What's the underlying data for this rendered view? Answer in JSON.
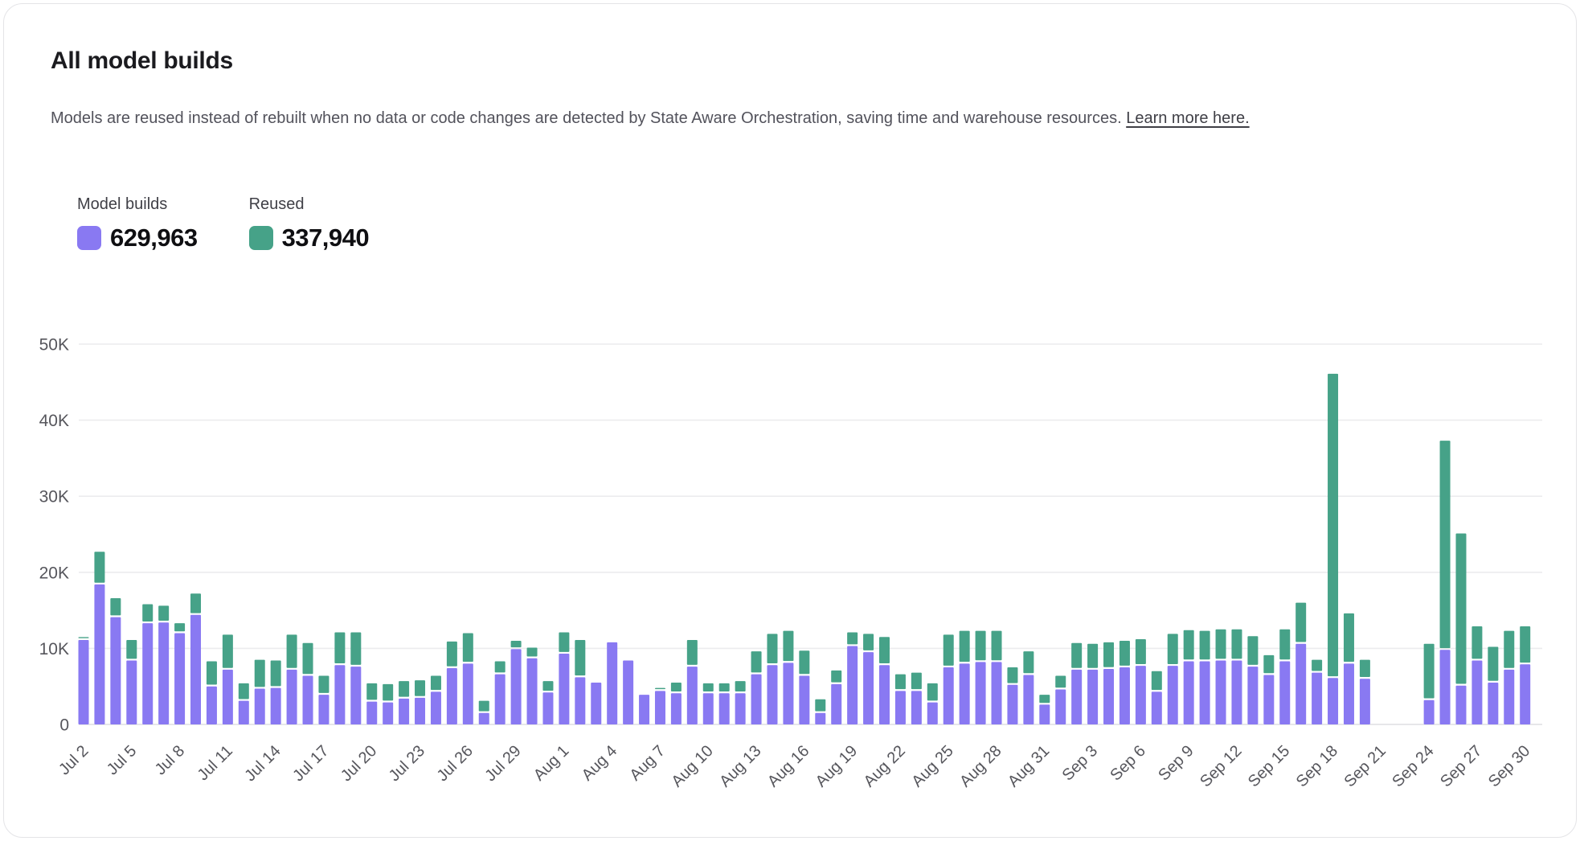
{
  "card": {
    "title": "All model builds",
    "subtitle": "Models are reused instead of rebuilt when no data or code changes are detected by State Aware Orchestration, saving time and warehouse resources.",
    "link_text": "Learn more here."
  },
  "legend": [
    {
      "label": "Model builds",
      "value": "629,963",
      "color": "#8979f2"
    },
    {
      "label": "Reused",
      "value": "337,940",
      "color": "#46a288"
    }
  ],
  "colors": {
    "model_builds": "#8979f2",
    "reused": "#46a288",
    "gridline": "#ececee",
    "baseline": "#e6e6e9",
    "axis_text": "#56565c",
    "card_border": "#e4e4e7"
  },
  "chart_data": {
    "type": "bar",
    "stacked": true,
    "title": "All model builds",
    "xlabel": "",
    "ylabel": "",
    "unit": "thousands",
    "ylim": [
      0,
      50
    ],
    "grid": true,
    "legend_position": "top-left",
    "yticks": [
      {
        "value": 0,
        "label": "0"
      },
      {
        "value": 10,
        "label": "10K"
      },
      {
        "value": 20,
        "label": "20K"
      },
      {
        "value": 30,
        "label": "30K"
      },
      {
        "value": 40,
        "label": "40K"
      },
      {
        "value": 50,
        "label": "50K"
      }
    ],
    "xtick_every": 3,
    "xticks": [
      "Jul 2",
      "Jul 5",
      "Jul 8",
      "Jul 11",
      "Jul 14",
      "Jul 17",
      "Jul 20",
      "Jul 23",
      "Jul 26",
      "Jul 29",
      "Aug 1",
      "Aug 4",
      "Aug 7",
      "Aug 10",
      "Aug 13",
      "Aug 16",
      "Aug 19",
      "Aug 22",
      "Aug 25",
      "Aug 28",
      "Aug 31",
      "Sep 3",
      "Sep 6",
      "Sep 9",
      "Sep 12",
      "Sep 15",
      "Sep 18",
      "Sep 21",
      "Sep 24",
      "Sep 27"
    ],
    "categories": [
      "Jul 2",
      "Jul 3",
      "Jul 4",
      "Jul 5",
      "Jul 6",
      "Jul 7",
      "Jul 8",
      "Jul 9",
      "Jul 10",
      "Jul 11",
      "Jul 12",
      "Jul 13",
      "Jul 14",
      "Jul 15",
      "Jul 16",
      "Jul 17",
      "Jul 18",
      "Jul 19",
      "Jul 20",
      "Jul 21",
      "Jul 22",
      "Jul 23",
      "Jul 24",
      "Jul 25",
      "Jul 26",
      "Jul 27",
      "Jul 28",
      "Jul 29",
      "Jul 30",
      "Jul 31",
      "Aug 1",
      "Aug 2",
      "Aug 3",
      "Aug 4",
      "Aug 5",
      "Aug 6",
      "Aug 7",
      "Aug 8",
      "Aug 9",
      "Aug 10",
      "Aug 11",
      "Aug 12",
      "Aug 13",
      "Aug 14",
      "Aug 15",
      "Aug 16",
      "Aug 17",
      "Aug 18",
      "Aug 19",
      "Aug 20",
      "Aug 21",
      "Aug 22",
      "Aug 23",
      "Aug 24",
      "Aug 25",
      "Aug 26",
      "Aug 27",
      "Aug 28",
      "Aug 29",
      "Aug 30",
      "Aug 31",
      "Sep 1",
      "Sep 2",
      "Sep 3",
      "Sep 4",
      "Sep 5",
      "Sep 6",
      "Sep 7",
      "Sep 8",
      "Sep 9",
      "Sep 10",
      "Sep 11",
      "Sep 12",
      "Sep 13",
      "Sep 14",
      "Sep 15",
      "Sep 16",
      "Sep 17",
      "Sep 18",
      "Sep 19",
      "Sep 20",
      "Sep 21",
      "Sep 22",
      "Sep 23",
      "Sep 24",
      "Sep 25",
      "Sep 26",
      "Sep 27",
      "Sep 28",
      "Sep 29",
      "Sep 30"
    ],
    "series": [
      {
        "name": "Model builds",
        "color": "#8979f2",
        "values": [
          11.1,
          18.4,
          14.1,
          8.4,
          13.3,
          13.4,
          12.0,
          14.4,
          5.0,
          7.2,
          3.1,
          4.7,
          4.8,
          7.2,
          6.4,
          3.9,
          7.8,
          7.6,
          3.0,
          2.9,
          3.4,
          3.5,
          4.3,
          7.4,
          8.0,
          1.5,
          6.6,
          9.9,
          8.7,
          4.2,
          9.3,
          6.2,
          5.5,
          10.8,
          8.4,
          3.9,
          4.4,
          4.1,
          7.6,
          4.1,
          4.1,
          4.1,
          6.6,
          7.8,
          8.1,
          6.4,
          1.5,
          5.3,
          10.3,
          9.5,
          7.8,
          4.4,
          4.4,
          2.9,
          7.5,
          8.0,
          8.2,
          8.2,
          5.2,
          6.5,
          2.6,
          4.6,
          7.2,
          7.2,
          7.3,
          7.5,
          7.7,
          4.3,
          7.7,
          8.3,
          8.3,
          8.4,
          8.4,
          7.6,
          6.5,
          8.3,
          10.6,
          6.8,
          6.1,
          8.0,
          6.0,
          0,
          0,
          0,
          3.2,
          9.8,
          5.1,
          8.4,
          5.5,
          7.2,
          7.9
        ]
      },
      {
        "name": "Reused",
        "color": "#46a288",
        "values": [
          0.2,
          4.3,
          2.5,
          2.7,
          2.5,
          2.2,
          1.3,
          2.8,
          3.3,
          4.6,
          2.3,
          3.8,
          3.6,
          4.6,
          4.3,
          2.5,
          4.3,
          4.5,
          2.4,
          2.4,
          2.3,
          2.3,
          2.1,
          3.5,
          4.0,
          1.6,
          1.7,
          1.1,
          1.4,
          1.5,
          2.8,
          4.9,
          0,
          0,
          0,
          0,
          0.4,
          1.4,
          3.5,
          1.3,
          1.3,
          1.6,
          3.0,
          4.1,
          4.2,
          3.3,
          1.8,
          1.8,
          1.8,
          2.4,
          3.7,
          2.2,
          2.4,
          2.5,
          4.3,
          4.3,
          4.1,
          4.1,
          2.3,
          3.1,
          1.3,
          1.8,
          3.5,
          3.4,
          3.5,
          3.5,
          3.5,
          2.7,
          4.2,
          4.1,
          4.0,
          4.1,
          4.1,
          4.0,
          2.6,
          4.2,
          5.4,
          1.7,
          40.0,
          6.6,
          2.5,
          0,
          0,
          0,
          7.4,
          27.5,
          20.0,
          4.5,
          4.7,
          5.1,
          5.0
        ]
      }
    ]
  }
}
